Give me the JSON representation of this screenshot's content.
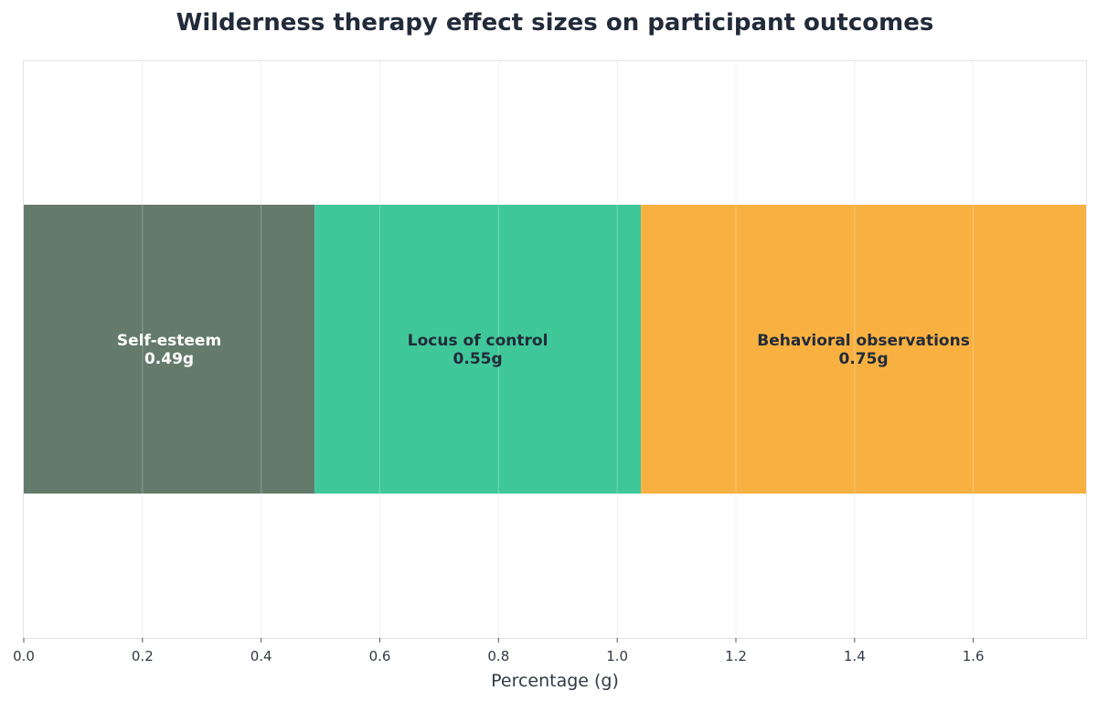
{
  "chart_data": {
    "type": "bar",
    "orientation": "horizontal",
    "stacked": true,
    "title": "Wilderness therapy effect sizes on participant outcomes",
    "xlabel": "Percentage (g)",
    "ylabel": "",
    "xlim": [
      0,
      1.79
    ],
    "xticks": [
      "0.0",
      "0.2",
      "0.4",
      "0.6",
      "0.8",
      "1.0",
      "1.2",
      "1.4",
      "1.6"
    ],
    "grid": true,
    "legend": "none",
    "segments": [
      {
        "label": "Self-esteem",
        "value": 0.49,
        "value_label": "0.49g",
        "color": "#647a6b",
        "text_color": "#ffffff"
      },
      {
        "label": "Locus of control",
        "value": 0.55,
        "value_label": "0.55g",
        "color": "#40c799",
        "text_color": "#222b3a"
      },
      {
        "label": "Behavioral observations",
        "value": 0.75,
        "value_label": "0.75g",
        "color": "#f8b141",
        "text_color": "#222b3a"
      }
    ]
  }
}
